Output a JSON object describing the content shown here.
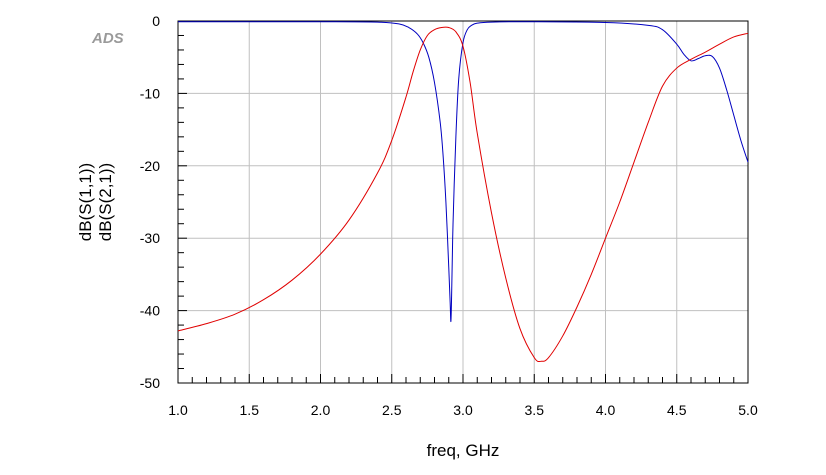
{
  "logo": {
    "text": "ADS",
    "color": "#9a9a9a"
  },
  "chart_data": {
    "type": "line",
    "xlabel": "freq, GHz",
    "ylabel": [
      "dB(S(1,1))",
      "dB(S(2,1))"
    ],
    "xlim": [
      1.0,
      5.0
    ],
    "ylim": [
      -50,
      0
    ],
    "x_major_ticks": [
      1.0,
      1.5,
      2.0,
      2.5,
      3.0,
      3.5,
      4.0,
      4.5,
      5.0
    ],
    "x_tick_labels": [
      "1.0",
      "1.5",
      "2.0",
      "2.5",
      "3.0",
      "3.5",
      "4.0",
      "4.5",
      "5.0"
    ],
    "y_major_ticks": [
      0,
      -10,
      -20,
      -30,
      -40,
      -50
    ],
    "y_tick_labels": [
      "0",
      "-10",
      "-20",
      "-30",
      "-40",
      "-50"
    ],
    "x_minor_step": 0.1,
    "y_minor_step": 2,
    "grid": true,
    "series": [
      {
        "name": "dB(S(1,1))",
        "color": "#0000c0",
        "x": [
          1.0,
          2.0,
          2.4,
          2.55,
          2.62,
          2.68,
          2.72,
          2.76,
          2.8,
          2.84,
          2.86,
          2.88,
          2.9,
          2.91,
          2.915,
          2.92,
          2.93,
          2.95,
          2.97,
          3.0,
          3.03,
          3.06,
          3.1,
          3.2,
          3.5,
          4.0,
          4.3,
          4.4,
          4.5,
          4.55,
          4.6,
          4.65,
          4.7,
          4.75,
          4.8,
          4.85,
          4.9,
          4.95,
          5.0
        ],
        "y": [
          -0.1,
          -0.1,
          -0.15,
          -0.4,
          -0.9,
          -1.8,
          -3.0,
          -5.0,
          -8.5,
          -14,
          -18.5,
          -25,
          -34,
          -39,
          -41.5,
          -38,
          -28,
          -16,
          -8,
          -3.0,
          -1.2,
          -0.6,
          -0.3,
          -0.15,
          -0.1,
          -0.2,
          -0.6,
          -1.2,
          -3.2,
          -4.6,
          -5.5,
          -5.2,
          -4.8,
          -4.9,
          -6.5,
          -9.5,
          -13,
          -16.5,
          -19.5
        ]
      },
      {
        "name": "dB(S(2,1))",
        "color": "#e00000",
        "x": [
          1.0,
          1.2,
          1.4,
          1.6,
          1.8,
          2.0,
          2.2,
          2.4,
          2.5,
          2.6,
          2.65,
          2.7,
          2.75,
          2.8,
          2.85,
          2.9,
          2.95,
          3.0,
          3.05,
          3.1,
          3.2,
          3.3,
          3.4,
          3.5,
          3.55,
          3.6,
          3.7,
          3.8,
          3.9,
          4.0,
          4.1,
          4.2,
          4.3,
          4.4,
          4.5,
          4.6,
          4.7,
          4.8,
          4.9,
          5.0
        ],
        "y": [
          -42.8,
          -41.8,
          -40.5,
          -38.5,
          -35.8,
          -32.2,
          -27.5,
          -21.0,
          -16.5,
          -10.5,
          -7.0,
          -4.0,
          -2.0,
          -1.2,
          -0.9,
          -0.9,
          -1.5,
          -3.5,
          -8.5,
          -15.5,
          -26.5,
          -35.5,
          -42.5,
          -46.5,
          -47.0,
          -46.5,
          -43.5,
          -39.5,
          -35.0,
          -30.0,
          -25.0,
          -19.5,
          -14.0,
          -9.0,
          -6.5,
          -5.3,
          -4.3,
          -3.2,
          -2.2,
          -1.7
        ]
      }
    ]
  }
}
